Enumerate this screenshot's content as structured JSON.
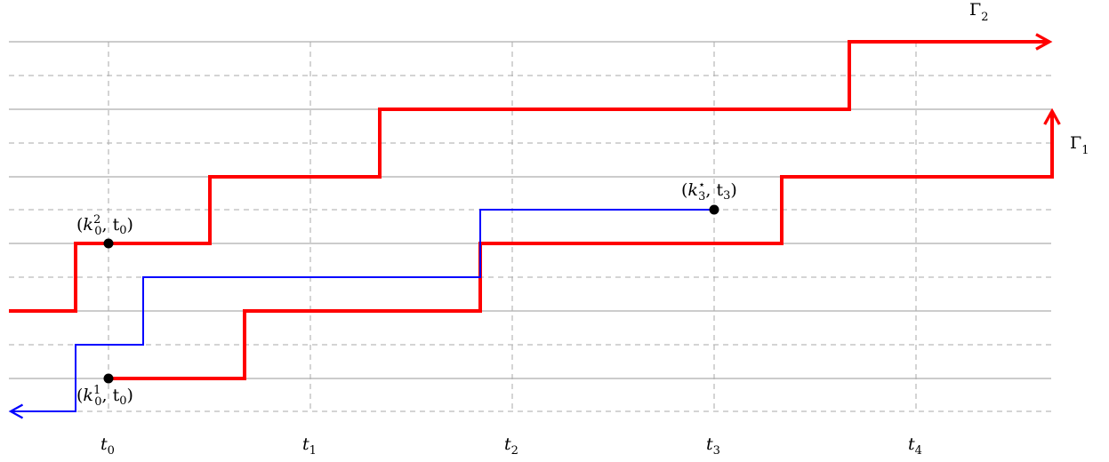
{
  "diagram": {
    "time_labels": [
      {
        "base": "t",
        "sub": "0"
      },
      {
        "base": "t",
        "sub": "1"
      },
      {
        "base": "t",
        "sub": "2"
      },
      {
        "base": "t",
        "sub": "3"
      },
      {
        "base": "t",
        "sub": "4"
      }
    ],
    "curves": {
      "gamma2": {
        "base": "Γ",
        "sub": "2",
        "color": "#ff0000"
      },
      "gamma1": {
        "base": "Γ",
        "sub": "1",
        "color": "#ff0000"
      }
    },
    "blue_path_color": "#0000ff",
    "points": {
      "k0_2": {
        "open": "(",
        "base": "k",
        "sub": "0",
        "sup": "2",
        "rest": ", t",
        "rest_sub": "0",
        "close": ")"
      },
      "k0_1": {
        "open": "(",
        "base": "k",
        "sub": "0",
        "sup": "1",
        "rest": ", t",
        "rest_sub": "0",
        "close": ")"
      },
      "k3_star": {
        "open": "(",
        "base": "k",
        "sub": "3",
        "sup": "⋆",
        "rest": ", t",
        "rest_sub": "3",
        "close": ")"
      }
    }
  }
}
